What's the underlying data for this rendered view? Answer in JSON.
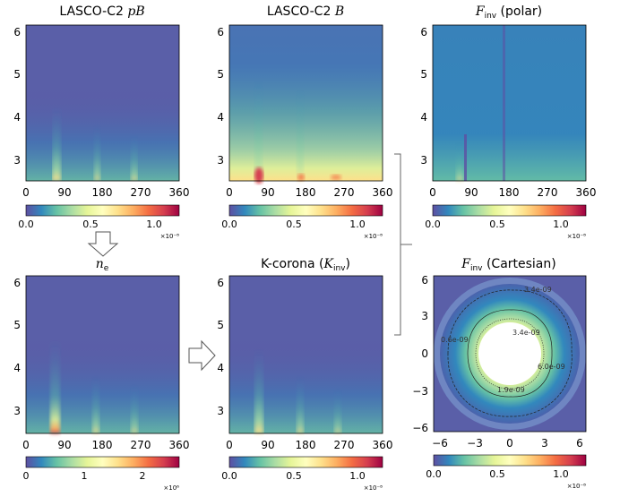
{
  "panels": {
    "pB": {
      "title_main": "LASCO-C2 ",
      "title_math": "pB",
      "xticks": [
        "0",
        "90",
        "180",
        "270",
        "360"
      ],
      "yticks": [
        "3",
        "4",
        "5",
        "6"
      ],
      "cbar_ticks": [
        "0.0",
        "0.5",
        "1.0"
      ],
      "cbar_scale": "×10⁻⁸"
    },
    "B": {
      "title_main": "LASCO-C2 ",
      "title_math": "B",
      "xticks": [
        "0",
        "90",
        "180",
        "270",
        "360"
      ],
      "yticks": [
        "3",
        "4",
        "5",
        "6"
      ],
      "cbar_ticks": [
        "0.0",
        "0.5",
        "1.0"
      ],
      "cbar_scale": "×10⁻⁸"
    },
    "Finv_polar": {
      "title_math": "F",
      "title_sub": "inv",
      "title_rest": " (polar)",
      "xticks": [
        "0",
        "90",
        "180",
        "270",
        "360"
      ],
      "yticks": [
        "3",
        "4",
        "5",
        "6"
      ],
      "cbar_ticks": [
        "0.0",
        "0.5",
        "1.0"
      ],
      "cbar_scale": "×10⁻⁸"
    },
    "ne": {
      "title_math": "n",
      "title_sub": "e",
      "xticks": [
        "0",
        "90",
        "180",
        "270",
        "360"
      ],
      "yticks": [
        "3",
        "4",
        "5",
        "6"
      ],
      "cbar_ticks": [
        "0",
        "1",
        "2"
      ],
      "cbar_scale": "×10⁶"
    },
    "Kcorona": {
      "title_main": "K-corona (",
      "title_math": "K",
      "title_sub": "inv",
      "title_rest": ")",
      "xticks": [
        "0",
        "90",
        "180",
        "270",
        "360"
      ],
      "yticks": [
        "3",
        "4",
        "5",
        "6"
      ],
      "cbar_ticks": [
        "0.0",
        "0.5",
        "1.0"
      ],
      "cbar_scale": "×10⁻⁸"
    },
    "Finv_cart": {
      "title_math": "F",
      "title_sub": "inv",
      "title_rest": " (Cartesian)",
      "xticks": [
        "−6",
        "−3",
        "0",
        "3",
        "6"
      ],
      "yticks": [
        "−6",
        "−3",
        "0",
        "3",
        "6"
      ],
      "cbar_ticks": [
        "0.0",
        "0.5",
        "1.0"
      ],
      "cbar_scale": "×10⁻⁸",
      "contour_labels": [
        "3.4e-09",
        "1.9e-09",
        "0.6e-09",
        "3.4e-09",
        "6.0e-09"
      ]
    }
  },
  "colors": {
    "spectral": [
      "#5e4fa2",
      "#3288bd",
      "#66c2a5",
      "#abdda4",
      "#e6f598",
      "#ffffbf",
      "#fee08b",
      "#fdae61",
      "#f46d43",
      "#d53e4f",
      "#9e0142"
    ],
    "background_blue": "#5a5fa8"
  },
  "arrows": {
    "down": "hollow-down-arrow",
    "right": "hollow-right-arrow"
  }
}
